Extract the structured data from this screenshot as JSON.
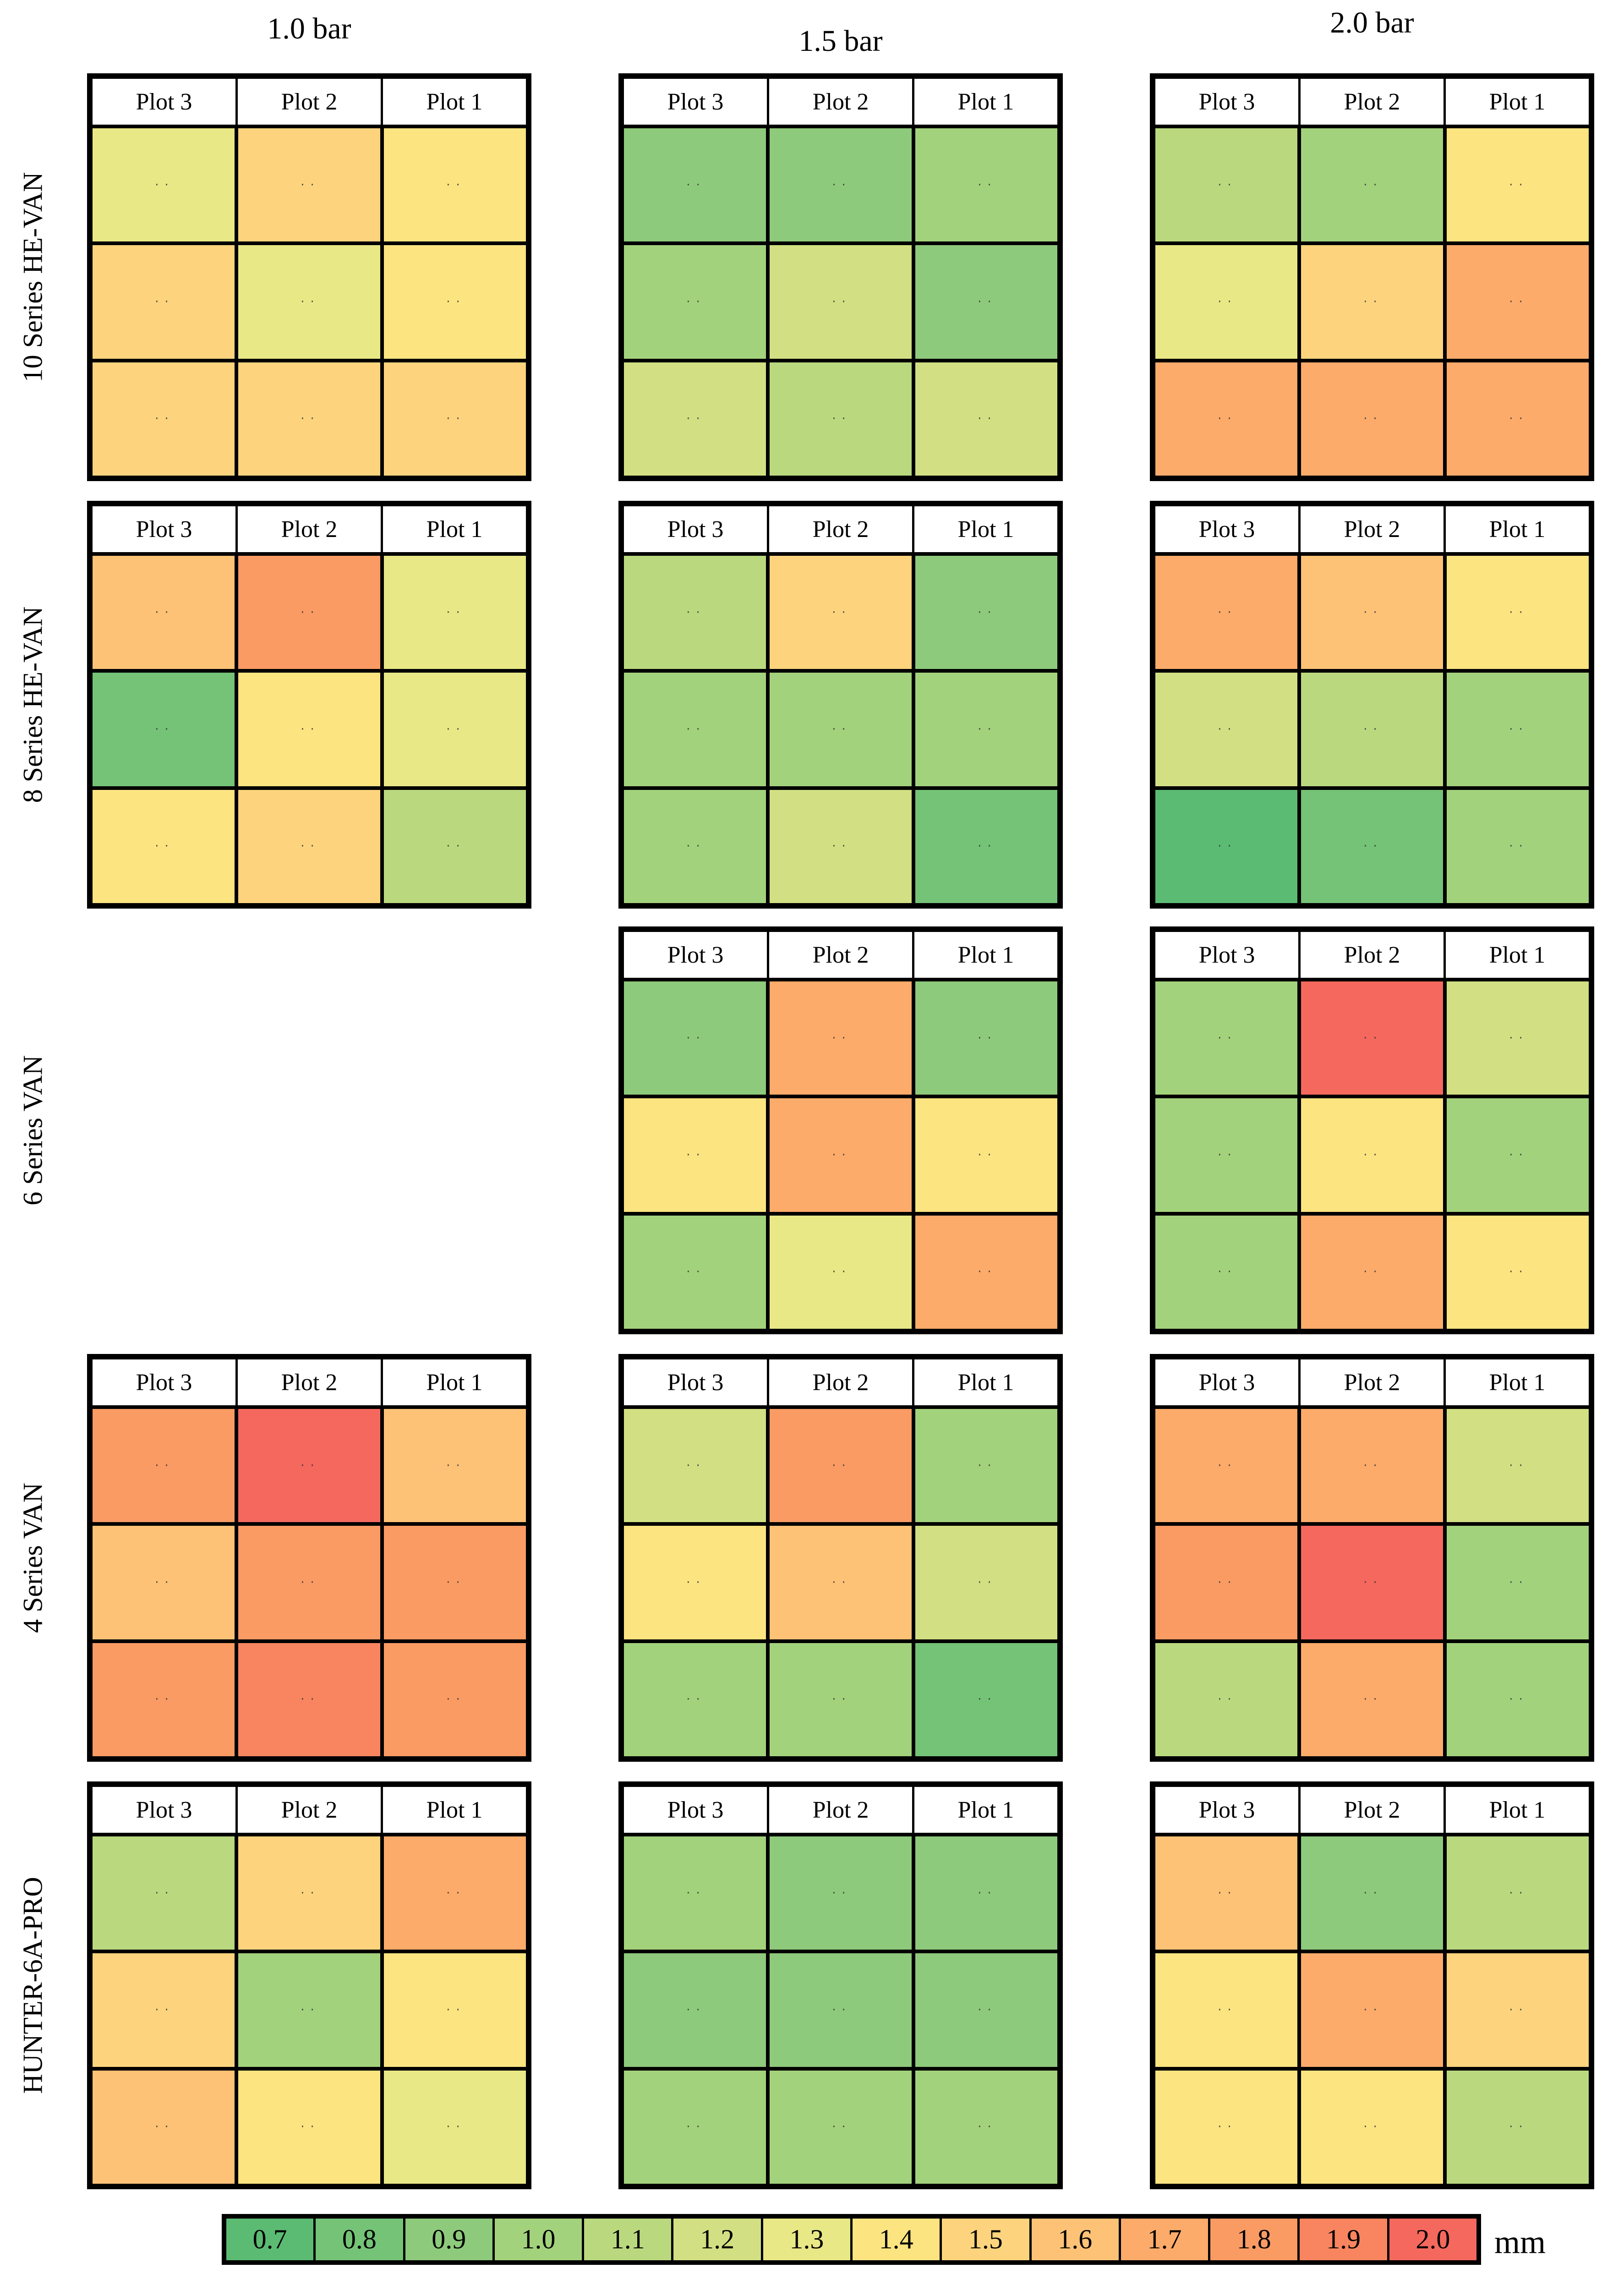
{
  "columns": [
    "1.0 bar",
    "1.5 bar",
    "2.0 bar"
  ],
  "rows": [
    "10 Series HE-VAN",
    "8 Series HE-VAN",
    "6 Series VAN",
    "4 Series VAN",
    "HUNTER-6A-PRO"
  ],
  "plot_headers": [
    "Plot 3",
    "Plot 2",
    "Plot 1"
  ],
  "legend": {
    "unit": "mm",
    "min": 0.7,
    "max": 2.0,
    "values": [
      "0.7",
      "0.8",
      "0.9",
      "1.0",
      "1.1",
      "1.2",
      "1.3",
      "1.4",
      "1.5",
      "1.6",
      "1.7",
      "1.8",
      "1.9",
      "2.0"
    ],
    "colors": [
      "#5bbb73",
      "#74c377",
      "#8eca7b",
      "#a3d27c",
      "#bad97f",
      "#d2e083",
      "#e9e886",
      "#fce481",
      "#fdd47d",
      "#fdc276",
      "#fcab6a",
      "#fa9b64",
      "#f8855f",
      "#f5685e"
    ]
  },
  "chart_data": [
    {
      "type": "heatmap",
      "series": "10 Series HE-VAN",
      "pressure": "1.0 bar",
      "unit": "mm",
      "columns": [
        "Plot 3",
        "Plot 2",
        "Plot 1"
      ],
      "values": [
        [
          1.3,
          1.5,
          1.4
        ],
        [
          1.5,
          1.3,
          1.4
        ],
        [
          1.5,
          1.5,
          1.5
        ]
      ]
    },
    {
      "type": "heatmap",
      "series": "10 Series HE-VAN",
      "pressure": "1.5 bar",
      "unit": "mm",
      "columns": [
        "Plot 3",
        "Plot 2",
        "Plot 1"
      ],
      "values": [
        [
          0.9,
          0.9,
          1.0
        ],
        [
          1.0,
          1.2,
          0.9
        ],
        [
          1.2,
          1.1,
          1.2
        ]
      ]
    },
    {
      "type": "heatmap",
      "series": "10 Series HE-VAN",
      "pressure": "2.0 bar",
      "unit": "mm",
      "columns": [
        "Plot 3",
        "Plot 2",
        "Plot 1"
      ],
      "values": [
        [
          1.1,
          1.0,
          1.4
        ],
        [
          1.3,
          1.5,
          1.7
        ],
        [
          1.7,
          1.7,
          1.7
        ]
      ]
    },
    {
      "type": "heatmap",
      "series": "8 Series HE-VAN",
      "pressure": "1.0 bar",
      "unit": "mm",
      "columns": [
        "Plot 3",
        "Plot 2",
        "Plot 1"
      ],
      "values": [
        [
          1.6,
          1.8,
          1.3
        ],
        [
          0.8,
          1.4,
          1.3
        ],
        [
          1.4,
          1.5,
          1.1
        ]
      ]
    },
    {
      "type": "heatmap",
      "series": "8 Series HE-VAN",
      "pressure": "1.5 bar",
      "unit": "mm",
      "columns": [
        "Plot 3",
        "Plot 2",
        "Plot 1"
      ],
      "values": [
        [
          1.1,
          1.5,
          0.9
        ],
        [
          1.0,
          1.0,
          1.0
        ],
        [
          1.0,
          1.2,
          0.8
        ]
      ]
    },
    {
      "type": "heatmap",
      "series": "8 Series HE-VAN",
      "pressure": "2.0 bar",
      "unit": "mm",
      "columns": [
        "Plot 3",
        "Plot 2",
        "Plot 1"
      ],
      "values": [
        [
          1.7,
          1.6,
          1.4
        ],
        [
          1.2,
          1.1,
          1.0
        ],
        [
          0.7,
          0.8,
          1.0
        ]
      ]
    },
    {
      "type": "heatmap",
      "series": "6 Series VAN",
      "pressure": "1.5 bar",
      "unit": "mm",
      "columns": [
        "Plot 3",
        "Plot 2",
        "Plot 1"
      ],
      "values": [
        [
          0.9,
          1.7,
          0.9
        ],
        [
          1.4,
          1.7,
          1.4
        ],
        [
          1.0,
          1.3,
          1.7
        ]
      ]
    },
    {
      "type": "heatmap",
      "series": "6 Series VAN",
      "pressure": "2.0 bar",
      "unit": "mm",
      "columns": [
        "Plot 3",
        "Plot 2",
        "Plot 1"
      ],
      "values": [
        [
          1.0,
          2.0,
          1.2
        ],
        [
          1.0,
          1.4,
          1.0
        ],
        [
          1.0,
          1.7,
          1.4
        ]
      ]
    },
    {
      "type": "heatmap",
      "series": "4 Series VAN",
      "pressure": "1.0 bar",
      "unit": "mm",
      "columns": [
        "Plot 3",
        "Plot 2",
        "Plot 1"
      ],
      "values": [
        [
          1.8,
          2.0,
          1.6
        ],
        [
          1.6,
          1.8,
          1.8
        ],
        [
          1.8,
          1.9,
          1.8
        ]
      ]
    },
    {
      "type": "heatmap",
      "series": "4 Series VAN",
      "pressure": "1.5 bar",
      "unit": "mm",
      "columns": [
        "Plot 3",
        "Plot 2",
        "Plot 1"
      ],
      "values": [
        [
          1.2,
          1.8,
          1.0
        ],
        [
          1.4,
          1.6,
          1.2
        ],
        [
          1.0,
          1.0,
          0.8
        ]
      ]
    },
    {
      "type": "heatmap",
      "series": "4 Series VAN",
      "pressure": "2.0 bar",
      "unit": "mm",
      "columns": [
        "Plot 3",
        "Plot 2",
        "Plot 1"
      ],
      "values": [
        [
          1.7,
          1.7,
          1.2
        ],
        [
          1.8,
          2.0,
          1.0
        ],
        [
          1.1,
          1.7,
          1.0
        ]
      ]
    },
    {
      "type": "heatmap",
      "series": "HUNTER-6A-PRO",
      "pressure": "1.0 bar",
      "unit": "mm",
      "columns": [
        "Plot 3",
        "Plot 2",
        "Plot 1"
      ],
      "values": [
        [
          1.1,
          1.5,
          1.7
        ],
        [
          1.5,
          1.0,
          1.4
        ],
        [
          1.6,
          1.4,
          1.3
        ]
      ]
    },
    {
      "type": "heatmap",
      "series": "HUNTER-6A-PRO",
      "pressure": "1.5 bar",
      "unit": "mm",
      "columns": [
        "Plot 3",
        "Plot 2",
        "Plot 1"
      ],
      "values": [
        [
          1.0,
          0.9,
          0.9
        ],
        [
          0.9,
          0.9,
          0.9
        ],
        [
          1.0,
          1.0,
          1.0
        ]
      ]
    },
    {
      "type": "heatmap",
      "series": "HUNTER-6A-PRO",
      "pressure": "2.0 bar",
      "unit": "mm",
      "columns": [
        "Plot 3",
        "Plot 2",
        "Plot 1"
      ],
      "values": [
        [
          1.6,
          0.9,
          1.1
        ],
        [
          1.4,
          1.7,
          1.5
        ],
        [
          1.4,
          1.4,
          1.1
        ]
      ]
    }
  ]
}
